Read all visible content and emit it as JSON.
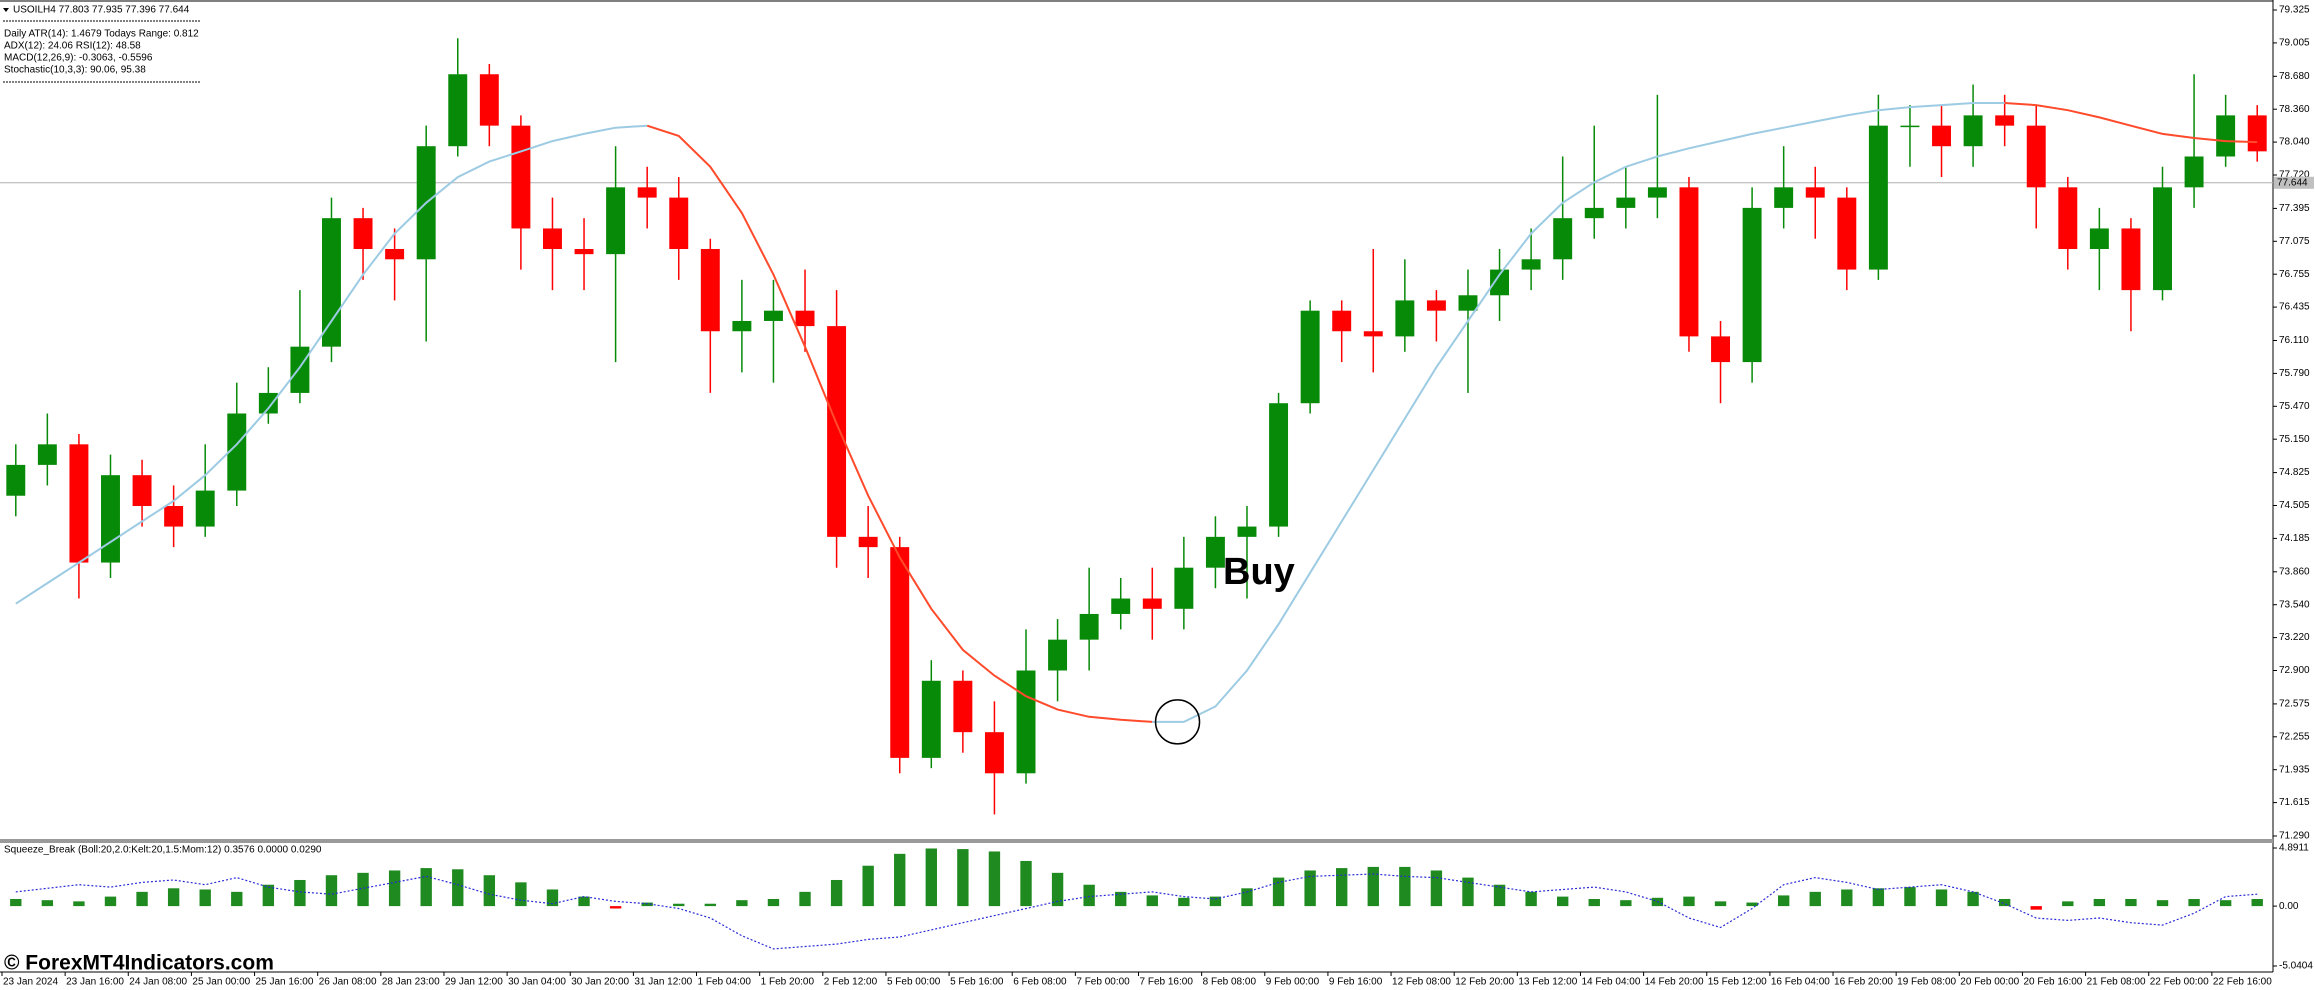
{
  "chart_data": [
    {
      "type": "candlestick",
      "title": "USOILH4  77.803 77.935 77.396 77.644",
      "info_lines": [
        "Daily ATR(14): 1.4679 Todays Range: 0.812",
        "ADX(12): 24.06 RSI(12): 48.58",
        "MACD(12,26,9): -0.3063, -0.5596",
        "Stochastic(10,3,3): 90.06, 95.38"
      ],
      "annotation": "Buy",
      "watermark": "© ForexMT4Indicators.com",
      "categories": [
        "23 Jan 2024",
        null,
        "23 Jan 16:00",
        null,
        "24 Jan 08:00",
        null,
        "25 Jan 00:00",
        null,
        "25 Jan 16:00",
        null,
        "26 Jan 08:00",
        null,
        "28 Jan 23:00",
        null,
        "29 Jan 12:00",
        null,
        "30 Jan 04:00",
        null,
        "30 Jan 20:00",
        null,
        "31 Jan 12:00",
        null,
        "1 Feb 04:00",
        null,
        "1 Feb 20:00",
        null,
        "2 Feb 12:00",
        null,
        "5 Feb 00:00",
        null,
        "5 Feb 16:00",
        null,
        "6 Feb 08:00",
        null,
        "7 Feb 00:00",
        null,
        "7 Feb 16:00",
        null,
        "8 Feb 08:00",
        null,
        "9 Feb 00:00",
        null,
        "9 Feb 16:00",
        null,
        "12 Feb 08:00",
        null,
        "12 Feb 20:00",
        null,
        "13 Feb 12:00",
        null,
        "14 Feb 04:00",
        null,
        "14 Feb 20:00",
        null,
        "15 Feb 12:00",
        null,
        "16 Feb 04:00",
        null,
        "16 Feb 20:00",
        null,
        "19 Feb 08:00",
        null,
        "20 Feb 00:00",
        null,
        "20 Feb 16:00",
        null,
        "21 Feb 08:00",
        null,
        "22 Feb 00:00",
        null,
        "22 Feb 16:00",
        null
      ],
      "open": [
        74.6,
        74.9,
        75.1,
        73.95,
        74.8,
        74.5,
        74.3,
        74.65,
        75.4,
        75.6,
        76.05,
        77.3,
        77.0,
        76.9,
        78.0,
        78.7,
        78.2,
        77.2,
        77.0,
        76.95,
        77.6,
        77.5,
        77.0,
        76.2,
        76.3,
        76.4,
        76.25,
        74.2,
        74.1,
        72.05,
        72.8,
        72.3,
        71.9,
        72.9,
        73.2,
        73.45,
        73.6,
        73.5,
        73.9,
        74.2,
        74.3,
        75.5,
        76.4,
        76.2,
        76.15,
        76.5,
        76.4,
        76.55,
        76.8,
        76.9,
        77.3,
        77.4,
        77.5,
        77.6,
        76.15,
        75.9,
        77.4,
        77.6,
        77.5,
        76.8,
        78.2,
        78.2,
        78.0,
        78.3,
        78.2,
        77.6,
        77.0,
        77.2,
        76.6,
        77.6,
        77.9,
        78.3
      ],
      "high": [
        75.1,
        75.4,
        75.2,
        75.0,
        74.95,
        74.7,
        75.1,
        75.7,
        75.85,
        76.6,
        77.5,
        77.4,
        77.2,
        78.2,
        79.05,
        78.8,
        78.3,
        77.5,
        77.3,
        78.0,
        77.8,
        77.7,
        77.1,
        76.7,
        76.7,
        76.8,
        76.6,
        74.5,
        74.2,
        73.0,
        72.9,
        72.6,
        73.3,
        73.4,
        73.9,
        73.8,
        73.9,
        74.2,
        74.4,
        74.5,
        75.6,
        76.5,
        76.5,
        77.0,
        76.9,
        76.6,
        76.8,
        77.0,
        77.2,
        77.9,
        78.2,
        77.8,
        78.5,
        77.7,
        76.3,
        77.6,
        78.0,
        77.8,
        77.6,
        78.5,
        78.4,
        78.4,
        78.6,
        78.5,
        78.4,
        77.7,
        77.4,
        77.3,
        77.8,
        78.7,
        78.5,
        78.4
      ],
      "low": [
        74.4,
        74.7,
        73.6,
        73.8,
        74.3,
        74.1,
        74.2,
        74.5,
        75.3,
        75.5,
        75.9,
        76.7,
        76.5,
        76.1,
        77.9,
        78.0,
        76.8,
        76.6,
        76.6,
        75.9,
        77.2,
        76.7,
        75.6,
        75.8,
        75.7,
        76.0,
        73.9,
        73.8,
        71.9,
        71.95,
        72.1,
        71.5,
        71.8,
        72.6,
        72.9,
        73.3,
        73.2,
        73.3,
        73.7,
        73.6,
        74.2,
        75.4,
        75.9,
        75.8,
        76.0,
        76.1,
        75.6,
        76.3,
        76.6,
        76.7,
        77.1,
        77.2,
        77.3,
        76.0,
        75.5,
        75.7,
        77.2,
        77.1,
        76.6,
        76.7,
        77.8,
        77.7,
        77.8,
        78.0,
        77.2,
        76.8,
        76.6,
        76.2,
        76.5,
        77.4,
        77.8,
        77.85
      ],
      "close": [
        74.9,
        75.1,
        73.95,
        74.8,
        74.5,
        74.3,
        74.65,
        75.4,
        75.6,
        76.05,
        77.3,
        77.0,
        76.9,
        78.0,
        78.7,
        78.2,
        77.2,
        77.0,
        76.95,
        77.6,
        77.5,
        77.0,
        76.2,
        76.3,
        76.4,
        76.25,
        74.2,
        74.1,
        72.05,
        72.8,
        72.3,
        71.9,
        72.9,
        73.2,
        73.45,
        73.6,
        73.5,
        73.9,
        74.2,
        74.3,
        75.5,
        76.4,
        76.2,
        76.15,
        76.5,
        76.4,
        76.55,
        76.8,
        76.9,
        77.3,
        77.4,
        77.5,
        77.6,
        76.15,
        75.9,
        77.4,
        77.6,
        77.5,
        76.8,
        78.2,
        78.2,
        78.0,
        78.3,
        78.2,
        77.6,
        77.0,
        77.2,
        76.6,
        77.6,
        77.9,
        78.3,
        77.95
      ],
      "up_color": "#078a07",
      "down_color": "#ff0000",
      "ma": {
        "values": [
          73.55,
          73.75,
          73.95,
          74.15,
          74.35,
          74.55,
          74.8,
          75.1,
          75.45,
          75.85,
          76.3,
          76.75,
          77.15,
          77.45,
          77.7,
          77.85,
          77.95,
          78.05,
          78.12,
          78.18,
          78.2,
          78.1,
          77.8,
          77.35,
          76.75,
          76.05,
          75.3,
          74.6,
          74.0,
          73.5,
          73.1,
          72.85,
          72.65,
          72.52,
          72.45,
          72.42,
          72.4,
          72.4,
          72.55,
          72.9,
          73.35,
          73.85,
          74.35,
          74.85,
          75.35,
          75.85,
          76.3,
          76.75,
          77.15,
          77.45,
          77.65,
          77.8,
          77.9,
          77.98,
          78.05,
          78.12,
          78.18,
          78.24,
          78.3,
          78.35,
          78.38,
          78.4,
          78.42,
          78.42,
          78.4,
          78.35,
          78.28,
          78.2,
          78.12,
          78.08,
          78.05,
          78.04
        ],
        "up_color": "#9ccbe3",
        "down_color": "#ff4b2b"
      },
      "ylim": [
        71.29,
        79.325
      ],
      "yticks": [
        79.325,
        79.005,
        {
          "value": 78.68,
          "label": "78.680"
        },
        {
          "value": 78.36,
          "label": "78.360"
        },
        {
          "value": 78.04,
          "label": "78.040"
        },
        {
          "value": 77.72,
          "label": "77.720"
        },
        77.395,
        77.075,
        76.755,
        76.435,
        {
          "value": 76.11,
          "label": "76.110"
        },
        {
          "value": 75.79,
          "label": "75.790"
        },
        {
          "value": 75.47,
          "label": "75.470"
        },
        {
          "value": 75.15,
          "label": "75.150"
        },
        74.825,
        74.505,
        74.185,
        {
          "value": 73.86,
          "label": "73.860"
        },
        {
          "value": 73.54,
          "label": "73.540"
        },
        {
          "value": 73.22,
          "label": "73.220"
        },
        {
          "value": 72.9,
          "label": "72.900"
        },
        72.575,
        72.255,
        71.935,
        71.615,
        {
          "value": 71.29,
          "label": "71.290"
        }
      ],
      "current_price": 77.644
    },
    {
      "type": "bar",
      "title": "Squeeze_Break (Boll:20,2.0:Kelt:20,1.5:Mom:12) 0.3576 0.0000 0.0290",
      "values": [
        0.6,
        0.5,
        0.4,
        0.8,
        1.2,
        1.5,
        1.4,
        1.2,
        1.8,
        2.2,
        2.6,
        2.8,
        3.0,
        3.2,
        3.1,
        2.6,
        2.0,
        1.4,
        0.8,
        -0.2,
        0.3,
        0.2,
        0.2,
        0.5,
        0.6,
        1.2,
        2.2,
        3.4,
        4.4,
        4.85,
        4.8,
        4.6,
        3.8,
        2.8,
        1.8,
        1.2,
        0.9,
        0.7,
        0.8,
        1.5,
        2.4,
        3.0,
        3.2,
        3.3,
        3.3,
        3.0,
        2.4,
        1.8,
        1.2,
        0.8,
        0.6,
        0.5,
        0.7,
        0.8,
        0.4,
        0.3,
        0.9,
        1.2,
        1.4,
        1.5,
        1.6,
        1.4,
        1.2,
        0.6,
        -0.3,
        0.4,
        0.6,
        0.6,
        0.5,
        0.6,
        0.5,
        0.6
      ],
      "up_color": "#1f8a1f",
      "down_color": "#ff0000",
      "line_values": [
        1.2,
        1.5,
        1.8,
        1.6,
        2.0,
        2.2,
        1.8,
        2.4,
        1.6,
        1.2,
        1.0,
        1.5,
        2.0,
        2.5,
        1.8,
        1.0,
        0.5,
        0.2,
        0.8,
        0.4,
        0.2,
        -0.2,
        -1.0,
        -2.5,
        -3.6,
        -3.4,
        -3.2,
        -2.8,
        -2.6,
        -2.0,
        -1.4,
        -0.8,
        -0.2,
        0.4,
        0.8,
        1.0,
        1.2,
        0.8,
        0.6,
        1.2,
        2.0,
        2.5,
        2.6,
        2.7,
        2.5,
        2.4,
        2.0,
        1.6,
        1.2,
        1.4,
        1.6,
        1.2,
        0.4,
        -1.0,
        -1.8,
        -0.2,
        1.8,
        2.4,
        2.0,
        1.4,
        1.6,
        1.8,
        1.2,
        0.2,
        -1.0,
        -1.2,
        -1.0,
        -1.4,
        -1.6,
        -0.6,
        0.8,
        1.0
      ],
      "line_color": "#2b2bd6",
      "ylim": [
        -5.0404,
        4.8911
      ],
      "yticks": [
        4.8911,
        {
          "value": 0,
          "label": "0.00"
        },
        -5.0404
      ]
    }
  ]
}
